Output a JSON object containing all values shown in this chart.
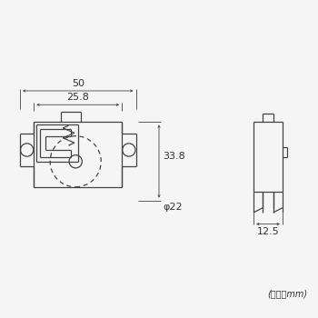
{
  "bg_color": "#f5f5f5",
  "line_color": "#444444",
  "dim_color": "#444444",
  "text_color": "#333333",
  "fig_size": [
    3.5,
    3.5
  ],
  "dpi": 100,
  "unit_label": "(単位：mm)",
  "dim_50": "50",
  "dim_25_8": "25.8",
  "dim_33_8": "33.8",
  "dim_phi22": "φ22",
  "dim_12_5": "12.5"
}
